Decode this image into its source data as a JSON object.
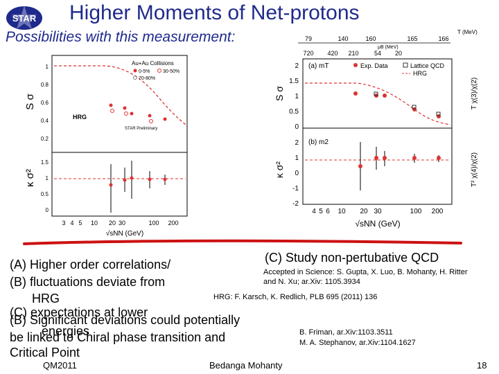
{
  "slide": {
    "title": "Higher Moments of Net-protons",
    "subtitle": "Possibilities with this measurement:",
    "logo_text": "STAR"
  },
  "left_plot": {
    "ylabel_top": "S σ",
    "ylabel_bottom": "κ σ²",
    "legend_title": "Au+Au Collisions",
    "legend_items": [
      "0-5%",
      "30-50%",
      "70-80%"
    ],
    "hrg_label": "HRG",
    "star_label": "STAR Preliminary",
    "top_ticks": [
      "1",
      "0.8",
      "0.6",
      "0.4",
      "0.2"
    ],
    "bottom_ticks": [
      "1.5",
      "1",
      "0.5",
      "0"
    ],
    "x_ticks": [
      "3",
      "4",
      "5",
      "10",
      "20",
      "30",
      "100",
      "200"
    ],
    "xlabel": "√sNN (GeV)"
  },
  "right_plot": {
    "top_axis_title_T": "T (MeV)",
    "top_axis_T_values": [
      "79",
      "140",
      "160",
      "165",
      "166"
    ],
    "top_axis_title_mu": "μB (MeV)",
    "top_axis_mu_values": [
      "720",
      "420",
      "210",
      "54",
      "20"
    ],
    "panel_a_label": "(a) mT",
    "panel_b_label": "(b) m2",
    "legend_exp": "Exp. Data",
    "legend_lattice": "Lattice QCD",
    "legend_hrg": "HRG",
    "ylabel_top": "S σ",
    "ylabel_bottom": "κ σ²",
    "ylabel_right_top": "T χ(3)/χ(2)",
    "ylabel_right_bottom": "T² χ(4)/χ(2)",
    "top_ticks": [
      "2",
      "1.5",
      "1",
      "0.5",
      "0"
    ],
    "bottom_ticks": [
      "2",
      "1",
      "0",
      "-1",
      "-2"
    ],
    "x_ticks": [
      "4",
      "5",
      "6",
      "10",
      "20",
      "30",
      "100",
      "200"
    ],
    "xlabel": "√sNN (GeV)"
  },
  "body": {
    "a_line": "(A)  Higher order correlations/",
    "b_line": "(B)  fluctuations deviate from",
    "hrg_line": "HRG",
    "c_line_overlap": "(C)  expectations at lower",
    "b2_line": "(B) Significant deviations could potentially",
    "energies_word": "energies",
    "be_line": "be  linked to Chiral phase transition and",
    "cp_line": "Critical Point"
  },
  "references": {
    "c_heading": "(C) Study non-pertubative QCD",
    "ref1_l1": "Accepted in Science: S. Gupta, X. Luo, B. Mohanty, H. Ritter",
    "ref1_l2": "and N. Xu; ar.Xiv: 1105.3934",
    "ref2": "HRG: F. Karsch, K. Redlich, PLB 695 (2011) 136",
    "ref3": "B. Friman, ar.Xiv:1103.3511",
    "ref4": "M. A. Stephanov, ar.Xiv:1104.1627"
  },
  "footer": {
    "left": "QM2011",
    "center": "Bedanga Mohanty",
    "right": "18"
  }
}
